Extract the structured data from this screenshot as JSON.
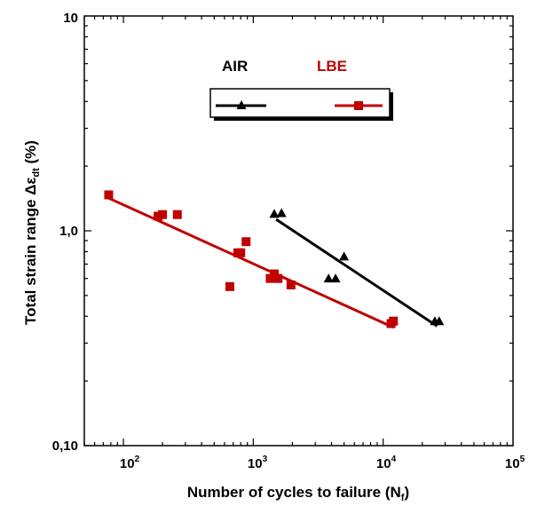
{
  "chart_data": {
    "type": "scatter",
    "title": "",
    "xlabel": "Number of cycles to failure (N",
    "xlabel_sub": "f",
    "xlabel_end": ")",
    "ylabel": "Total strain range Δε",
    "ylabel_sub": "dt",
    "ylabel_end": " (%)",
    "x_scale": "log",
    "y_scale": "log",
    "xlim": [
      50,
      100000
    ],
    "ylim": [
      0.1,
      10
    ],
    "x_tick_labels": [
      {
        "base": "10",
        "exp": "2"
      },
      {
        "base": "10",
        "exp": "3"
      },
      {
        "base": "10",
        "exp": "4"
      },
      {
        "base": "10",
        "exp": "5"
      }
    ],
    "y_tick_labels": [
      "0,10",
      "1,0",
      "10"
    ],
    "grid": false,
    "legend_position": "top-right",
    "series": [
      {
        "name": "AIR",
        "color": "#000000",
        "marker": "triangle",
        "points": [
          {
            "x": 1450,
            "y": 1.2
          },
          {
            "x": 1650,
            "y": 1.21
          },
          {
            "x": 3800,
            "y": 0.6
          },
          {
            "x": 4300,
            "y": 0.6
          },
          {
            "x": 5000,
            "y": 0.76
          },
          {
            "x": 25000,
            "y": 0.38
          },
          {
            "x": 27000,
            "y": 0.38
          }
        ],
        "fit": [
          {
            "x": 1500,
            "y": 1.13
          },
          {
            "x": 26000,
            "y": 0.36
          }
        ]
      },
      {
        "name": "LBE",
        "color": "#c00000",
        "marker": "square",
        "points": [
          {
            "x": 77,
            "y": 1.47
          },
          {
            "x": 185,
            "y": 1.17
          },
          {
            "x": 200,
            "y": 1.19
          },
          {
            "x": 260,
            "y": 1.19
          },
          {
            "x": 660,
            "y": 0.55
          },
          {
            "x": 760,
            "y": 0.79
          },
          {
            "x": 800,
            "y": 0.79
          },
          {
            "x": 880,
            "y": 0.89
          },
          {
            "x": 1350,
            "y": 0.6
          },
          {
            "x": 1450,
            "y": 0.63
          },
          {
            "x": 1550,
            "y": 0.6
          },
          {
            "x": 1950,
            "y": 0.56
          },
          {
            "x": 11500,
            "y": 0.37
          },
          {
            "x": 12000,
            "y": 0.38
          }
        ],
        "fit": [
          {
            "x": 75,
            "y": 1.43
          },
          {
            "x": 12000,
            "y": 0.355
          }
        ]
      }
    ]
  }
}
